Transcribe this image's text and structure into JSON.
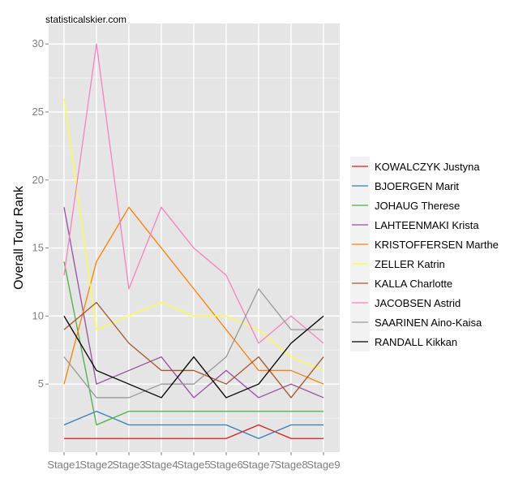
{
  "credit": "statisticalskier.com",
  "chart_data": {
    "type": "line",
    "title": "",
    "xlabel": "",
    "ylabel": "Overall Tour Rank",
    "categories": [
      "Stage1",
      "Stage2",
      "Stage3",
      "Stage4",
      "Stage5",
      "Stage6",
      "Stage7",
      "Stage8",
      "Stage9"
    ],
    "ylim": [
      0,
      31.5
    ],
    "yticks": [
      5,
      10,
      15,
      20,
      25,
      30
    ],
    "grid": true,
    "legend_position": "right",
    "series": [
      {
        "name": "KOWALCZYK Justyna",
        "color": "#e41a1c",
        "values": [
          1,
          1,
          1,
          1,
          1,
          1,
          2,
          1,
          1
        ]
      },
      {
        "name": "BJOERGEN Marit",
        "color": "#377eb8",
        "values": [
          2,
          3,
          2,
          2,
          2,
          2,
          1,
          2,
          2
        ]
      },
      {
        "name": "JOHAUG Therese",
        "color": "#4daf4a",
        "values": [
          14,
          2,
          3,
          3,
          3,
          3,
          3,
          3,
          3
        ]
      },
      {
        "name": "LAHTEENMAKI Krista",
        "color": "#984ea3",
        "values": [
          18,
          5,
          6,
          7,
          4,
          6,
          4,
          5,
          4
        ]
      },
      {
        "name": "KRISTOFFERSEN Marthe",
        "color": "#ff7f00",
        "values": [
          5,
          14,
          18,
          15,
          12,
          9,
          6,
          6,
          5
        ]
      },
      {
        "name": "ZELLER Katrin",
        "color": "#ffff33",
        "values": [
          26,
          9,
          10,
          11,
          10,
          10,
          9,
          7,
          6
        ]
      },
      {
        "name": "KALLA Charlotte",
        "color": "#a65628",
        "values": [
          9,
          11,
          8,
          6,
          6,
          5,
          7,
          4,
          7
        ]
      },
      {
        "name": "JACOBSEN Astrid",
        "color": "#f781bf",
        "values": [
          13,
          30,
          12,
          18,
          15,
          13,
          8,
          10,
          8
        ]
      },
      {
        "name": "SAARINEN Aino-Kaisa",
        "color": "#999999",
        "values": [
          7,
          4,
          4,
          5,
          5,
          7,
          12,
          9,
          9
        ]
      },
      {
        "name": "RANDALL Kikkan",
        "color": "#000000",
        "values": [
          10,
          6,
          5,
          4,
          7,
          4,
          5,
          8,
          10
        ]
      }
    ]
  }
}
